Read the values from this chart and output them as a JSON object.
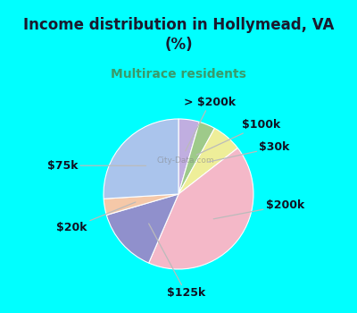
{
  "title": "Income distribution in Hollymead, VA\n(%)",
  "subtitle": "Multirace residents",
  "title_color": "#1a1a2e",
  "subtitle_color": "#3a9a6a",
  "background_outer": "#00ffff",
  "background_inner": "#dff0e8",
  "labels": [
    "> $200k",
    "$100k",
    "$30k",
    "$200k",
    "$125k",
    "$20k",
    "$75k"
  ],
  "values": [
    4.5,
    3.5,
    6.5,
    42.0,
    14.0,
    3.5,
    26.0
  ],
  "colors": [
    "#c0aee0",
    "#9eca8a",
    "#eeee99",
    "#f4b8c8",
    "#9090cc",
    "#f5c8a8",
    "#aac4ec"
  ],
  "label_color": "#111122",
  "label_fontsize": 9,
  "watermark": "City-Data.com",
  "line_color": "#bbbbbb",
  "title_fontsize": 12,
  "subtitle_fontsize": 10
}
